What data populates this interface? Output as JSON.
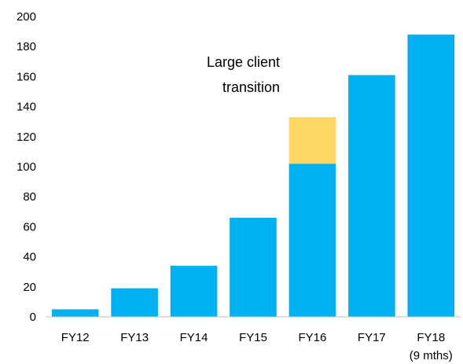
{
  "chart_data": {
    "type": "bar",
    "stacked": true,
    "categories": [
      "FY12",
      "FY13",
      "FY14",
      "FY15",
      "FY16",
      "FY17",
      "FY18"
    ],
    "category_sublabels": [
      "",
      "",
      "",
      "",
      "",
      "",
      "(9 mths)"
    ],
    "series": [
      {
        "values": [
          5,
          19,
          34,
          66,
          102,
          161,
          188
        ],
        "color": "#00B0F0"
      },
      {
        "values": [
          0,
          0,
          0,
          0,
          31,
          0,
          0
        ],
        "color": "#FFD966"
      }
    ],
    "ylim": [
      0,
      200
    ],
    "yticks": [
      0,
      20,
      40,
      60,
      80,
      100,
      120,
      140,
      160,
      180,
      200
    ],
    "grid": false,
    "legend": "none",
    "annotation": {
      "lines": [
        "Large client",
        "transition"
      ],
      "target_category": "FY16"
    }
  }
}
